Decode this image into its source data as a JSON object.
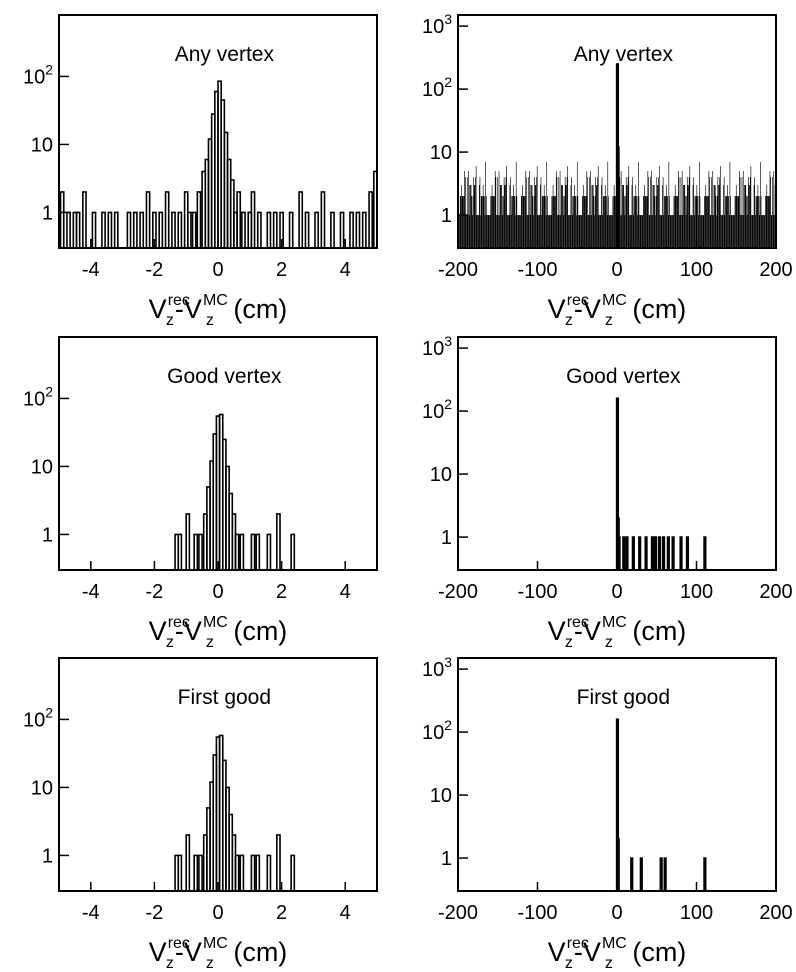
{
  "chart_data": [
    {
      "type": "histogram",
      "scale": "log",
      "title": "Any vertex",
      "xlabel": {
        "base": "V",
        "sub1": "z",
        "sup1": "rec",
        "sep": "-",
        "sub2": "z",
        "sup2": "MC",
        "unit": " (cm)"
      },
      "xlim": [
        -5,
        5
      ],
      "ylim": [
        0.3,
        800
      ],
      "xticks": [
        -4,
        -2,
        0,
        2,
        4
      ],
      "xtick_labels": [
        "-4",
        "-2",
        "0",
        "2",
        "4"
      ],
      "yticks": [
        {
          "value": 1,
          "base": "1",
          "exp": ""
        },
        {
          "value": 10,
          "base": "10",
          "exp": ""
        },
        {
          "value": 100,
          "base": "10",
          "exp": "2"
        }
      ],
      "bins": [
        [
          -4.9,
          2
        ],
        [
          -4.7,
          1
        ],
        [
          -4.5,
          1
        ],
        [
          -4.4,
          1
        ],
        [
          -4.2,
          2
        ],
        [
          -3.9,
          1
        ],
        [
          -3.6,
          1
        ],
        [
          -3.4,
          1
        ],
        [
          -3.2,
          1
        ],
        [
          -2.8,
          1
        ],
        [
          -2.6,
          1
        ],
        [
          -2.4,
          1
        ],
        [
          -2.2,
          2
        ],
        [
          -2.0,
          1
        ],
        [
          -1.8,
          1
        ],
        [
          -1.6,
          2
        ],
        [
          -1.4,
          1
        ],
        [
          -1.2,
          1
        ],
        [
          -1.0,
          2
        ],
        [
          -0.9,
          1
        ],
        [
          -0.75,
          1
        ],
        [
          -0.6,
          2
        ],
        [
          -0.45,
          4
        ],
        [
          -0.35,
          6
        ],
        [
          -0.25,
          12
        ],
        [
          -0.15,
          28
        ],
        [
          -0.05,
          60
        ],
        [
          0.05,
          85
        ],
        [
          0.15,
          45
        ],
        [
          0.25,
          15
        ],
        [
          0.35,
          6
        ],
        [
          0.45,
          3
        ],
        [
          0.55,
          1
        ],
        [
          0.65,
          2
        ],
        [
          0.8,
          1
        ],
        [
          1.0,
          1
        ],
        [
          1.1,
          2
        ],
        [
          1.3,
          1
        ],
        [
          1.6,
          1
        ],
        [
          1.8,
          1
        ],
        [
          2.0,
          1
        ],
        [
          2.3,
          1
        ],
        [
          2.6,
          2
        ],
        [
          2.8,
          1
        ],
        [
          3.1,
          1
        ],
        [
          3.3,
          2
        ],
        [
          3.6,
          1
        ],
        [
          3.9,
          1
        ],
        [
          4.2,
          1
        ],
        [
          4.4,
          1
        ],
        [
          4.6,
          1
        ],
        [
          4.8,
          2
        ],
        [
          4.95,
          4
        ]
      ]
    },
    {
      "type": "histogram",
      "scale": "log",
      "title": "Any vertex",
      "xlabel": {
        "base": "V",
        "sub1": "z",
        "sup1": "rec",
        "sep": "-",
        "sub2": "z",
        "sup2": "MC",
        "unit": " (cm)"
      },
      "xlim": [
        -200,
        200
      ],
      "ylim": [
        0.3,
        1500
      ],
      "xticks": [
        -200,
        -100,
        0,
        100,
        200
      ],
      "xtick_labels": [
        "-200",
        "-100",
        "0",
        "100",
        "200"
      ],
      "yticks": [
        {
          "value": 1,
          "base": "1",
          "exp": ""
        },
        {
          "value": 10,
          "base": "10",
          "exp": ""
        },
        {
          "value": 100,
          "base": "10",
          "exp": "2"
        },
        {
          "value": 1000,
          "base": "10",
          "exp": "3"
        }
      ],
      "noise": {
        "from": -200,
        "to": 200,
        "step": 0.8,
        "levels": [
          1,
          1,
          2,
          1,
          3,
          2,
          4,
          1,
          2,
          5,
          1,
          3,
          2,
          6,
          1,
          2,
          4,
          1,
          3,
          2,
          1,
          5,
          2,
          3,
          1,
          4,
          2,
          7,
          1,
          2,
          3,
          1
        ]
      },
      "bins": [
        [
          0,
          250
        ],
        [
          0.8,
          12
        ]
      ]
    },
    {
      "type": "histogram",
      "scale": "log",
      "title": "Good vertex",
      "xlabel": {
        "base": "V",
        "sub1": "z",
        "sup1": "rec",
        "sep": "-",
        "sub2": "z",
        "sup2": "MC",
        "unit": " (cm)"
      },
      "xlim": [
        -5,
        5
      ],
      "ylim": [
        0.3,
        800
      ],
      "xticks": [
        -4,
        -2,
        0,
        2,
        4
      ],
      "xtick_labels": [
        "-4",
        "-2",
        "0",
        "2",
        "4"
      ],
      "yticks": [
        {
          "value": 1,
          "base": "1",
          "exp": ""
        },
        {
          "value": 10,
          "base": "10",
          "exp": ""
        },
        {
          "value": 100,
          "base": "10",
          "exp": "2"
        }
      ],
      "bins": [
        [
          -1.3,
          1
        ],
        [
          -1.2,
          1
        ],
        [
          -0.95,
          2
        ],
        [
          -0.7,
          1
        ],
        [
          -0.55,
          1
        ],
        [
          -0.4,
          2
        ],
        [
          -0.3,
          5
        ],
        [
          -0.2,
          12
        ],
        [
          -0.1,
          30
        ],
        [
          0.0,
          55
        ],
        [
          0.1,
          58
        ],
        [
          0.2,
          25
        ],
        [
          0.3,
          10
        ],
        [
          0.4,
          4
        ],
        [
          0.5,
          2
        ],
        [
          0.6,
          1
        ],
        [
          0.75,
          1
        ],
        [
          1.1,
          1
        ],
        [
          1.25,
          1
        ],
        [
          1.6,
          1
        ],
        [
          1.9,
          2
        ],
        [
          2.35,
          1
        ]
      ]
    },
    {
      "type": "histogram",
      "scale": "log",
      "title": "Good vertex",
      "xlabel": {
        "base": "V",
        "sub1": "z",
        "sup1": "rec",
        "sep": "-",
        "sub2": "z",
        "sup2": "MC",
        "unit": " (cm)"
      },
      "xlim": [
        -200,
        200
      ],
      "ylim": [
        0.3,
        1500
      ],
      "xticks": [
        -200,
        -100,
        0,
        100,
        200
      ],
      "xtick_labels": [
        "-200",
        "-100",
        "0",
        "100",
        "200"
      ],
      "yticks": [
        {
          "value": 1,
          "base": "1",
          "exp": ""
        },
        {
          "value": 10,
          "base": "10",
          "exp": ""
        },
        {
          "value": 100,
          "base": "10",
          "exp": "2"
        },
        {
          "value": 1000,
          "base": "10",
          "exp": "3"
        }
      ],
      "bins": [
        [
          0,
          160
        ],
        [
          1,
          2
        ],
        [
          2,
          1
        ],
        [
          8,
          1
        ],
        [
          12,
          1
        ],
        [
          20,
          1
        ],
        [
          28,
          1
        ],
        [
          36,
          1
        ],
        [
          44,
          1
        ],
        [
          48,
          1
        ],
        [
          53,
          1
        ],
        [
          58,
          1
        ],
        [
          64,
          1
        ],
        [
          70,
          1
        ],
        [
          80,
          1
        ],
        [
          88,
          1
        ],
        [
          110,
          1
        ]
      ]
    },
    {
      "type": "histogram",
      "scale": "log",
      "title": "First good",
      "xlabel": {
        "base": "V",
        "sub1": "z",
        "sup1": "rec",
        "sep": "-",
        "sub2": "z",
        "sup2": "MC",
        "unit": " (cm)"
      },
      "xlim": [
        -5,
        5
      ],
      "ylim": [
        0.3,
        800
      ],
      "xticks": [
        -4,
        -2,
        0,
        2,
        4
      ],
      "xtick_labels": [
        "-4",
        "-2",
        "0",
        "2",
        "4"
      ],
      "yticks": [
        {
          "value": 1,
          "base": "1",
          "exp": ""
        },
        {
          "value": 10,
          "base": "10",
          "exp": ""
        },
        {
          "value": 100,
          "base": "10",
          "exp": "2"
        }
      ],
      "bins": [
        [
          -1.3,
          1
        ],
        [
          -1.2,
          1
        ],
        [
          -0.95,
          2
        ],
        [
          -0.7,
          1
        ],
        [
          -0.55,
          1
        ],
        [
          -0.4,
          2
        ],
        [
          -0.3,
          5
        ],
        [
          -0.2,
          12
        ],
        [
          -0.1,
          30
        ],
        [
          0.0,
          55
        ],
        [
          0.1,
          58
        ],
        [
          0.2,
          25
        ],
        [
          0.3,
          10
        ],
        [
          0.4,
          4
        ],
        [
          0.5,
          2
        ],
        [
          0.6,
          1
        ],
        [
          0.75,
          1
        ],
        [
          1.1,
          1
        ],
        [
          1.25,
          1
        ],
        [
          1.6,
          1
        ],
        [
          1.9,
          2
        ],
        [
          2.35,
          1
        ]
      ]
    },
    {
      "type": "histogram",
      "scale": "log",
      "title": "First good",
      "xlabel": {
        "base": "V",
        "sub1": "z",
        "sup1": "rec",
        "sep": "-",
        "sub2": "z",
        "sup2": "MC",
        "unit": " (cm)"
      },
      "xlim": [
        -200,
        200
      ],
      "ylim": [
        0.3,
        1500
      ],
      "xticks": [
        -200,
        -100,
        0,
        100,
        200
      ],
      "xtick_labels": [
        "-200",
        "-100",
        "0",
        "100",
        "200"
      ],
      "yticks": [
        {
          "value": 1,
          "base": "1",
          "exp": ""
        },
        {
          "value": 10,
          "base": "10",
          "exp": ""
        },
        {
          "value": 100,
          "base": "10",
          "exp": "2"
        },
        {
          "value": 1000,
          "base": "10",
          "exp": "3"
        }
      ],
      "bins": [
        [
          0,
          160
        ],
        [
          1,
          2
        ],
        [
          18,
          1
        ],
        [
          30,
          1
        ],
        [
          55,
          1
        ],
        [
          60,
          1
        ],
        [
          110,
          1
        ]
      ]
    }
  ]
}
